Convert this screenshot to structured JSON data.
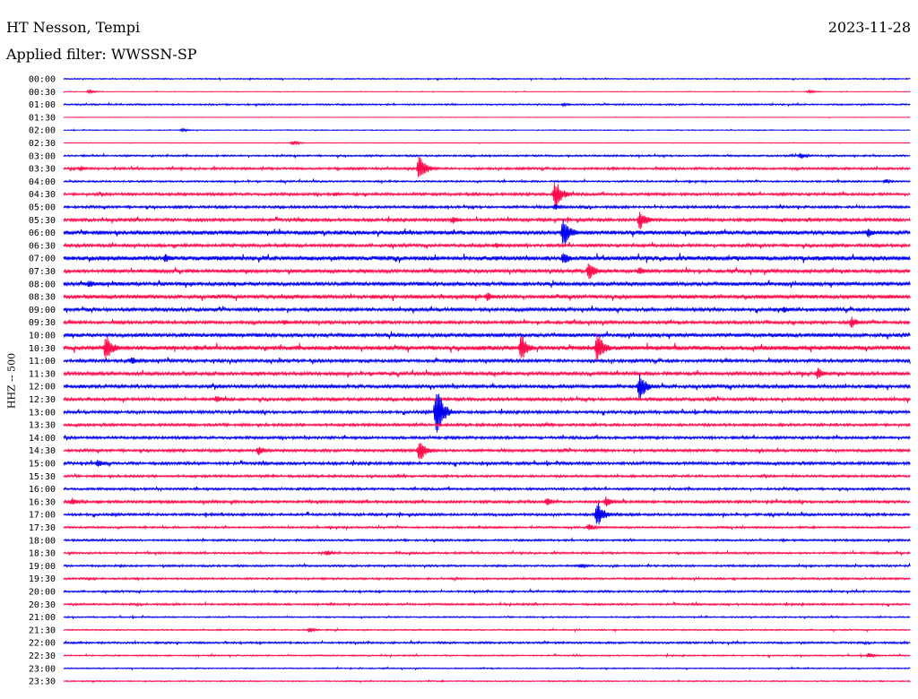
{
  "header": {
    "station": "HT Nesson, Tempi",
    "date": "2023-11-28",
    "filter": "Applied filter: WWSSN-SP"
  },
  "chart_data": {
    "type": "line",
    "title": "HT Nesson, Tempi",
    "subtitle": "Applied filter: WWSSN-SP",
    "ylabel": "HHZ -- 500",
    "xlabel": "",
    "grid": false,
    "y_tick_labels": [
      "00:00",
      "00:30",
      "01:00",
      "01:30",
      "02:00",
      "02:30",
      "03:00",
      "03:30",
      "04:00",
      "04:30",
      "05:00",
      "05:30",
      "06:00",
      "06:30",
      "07:00",
      "07:30",
      "08:00",
      "08:30",
      "09:00",
      "09:30",
      "10:00",
      "10:30",
      "11:00",
      "11:30",
      "12:00",
      "12:30",
      "13:00",
      "13:30",
      "14:00",
      "14:30",
      "15:00",
      "15:30",
      "16:00",
      "16:30",
      "17:00",
      "17:30",
      "18:00",
      "18:30",
      "19:00",
      "19:30",
      "20:00",
      "20:30",
      "21:00",
      "21:30",
      "22:00",
      "22:30",
      "23:00",
      "23:30"
    ],
    "trace_colors": [
      "#0000ee",
      "#ff0a4a"
    ],
    "noise_levels": [
      0.6,
      0.3,
      0.8,
      0.2,
      0.4,
      0.3,
      0.9,
      1.2,
      0.9,
      1.4,
      1.3,
      1.6,
      2.2,
      1.6,
      2.4,
      1.8,
      2.0,
      2.0,
      1.8,
      1.6,
      2.0,
      2.4,
      1.6,
      1.8,
      1.8,
      1.6,
      1.5,
      1.4,
      1.4,
      1.4,
      1.5,
      1.2,
      1.2,
      1.4,
      1.3,
      1.0,
      1.0,
      1.0,
      1.0,
      1.0,
      1.0,
      1.0,
      0.7,
      0.7,
      1.0,
      0.7,
      0.6,
      0.6
    ],
    "events": [
      {
        "trace": 1,
        "pos": 0.03,
        "amp": 2
      },
      {
        "trace": 1,
        "pos": 0.88,
        "amp": 2
      },
      {
        "trace": 2,
        "pos": 0.59,
        "amp": 2
      },
      {
        "trace": 4,
        "pos": 0.14,
        "amp": 2
      },
      {
        "trace": 5,
        "pos": 0.27,
        "amp": 3
      },
      {
        "trace": 6,
        "pos": 0.87,
        "amp": 4
      },
      {
        "trace": 7,
        "pos": 0.42,
        "amp": 16
      },
      {
        "trace": 7,
        "pos": 0.02,
        "amp": 3
      },
      {
        "trace": 8,
        "pos": 0.97,
        "amp": 3
      },
      {
        "trace": 9,
        "pos": 0.58,
        "amp": 18
      },
      {
        "trace": 9,
        "pos": 0.32,
        "amp": 3
      },
      {
        "trace": 10,
        "pos": 0.58,
        "amp": 4
      },
      {
        "trace": 11,
        "pos": 0.68,
        "amp": 12
      },
      {
        "trace": 11,
        "pos": 0.46,
        "amp": 5
      },
      {
        "trace": 12,
        "pos": 0.59,
        "amp": 18
      },
      {
        "trace": 12,
        "pos": 0.95,
        "amp": 6
      },
      {
        "trace": 13,
        "pos": 0.51,
        "amp": 4
      },
      {
        "trace": 14,
        "pos": 0.12,
        "amp": 6
      },
      {
        "trace": 14,
        "pos": 0.59,
        "amp": 8
      },
      {
        "trace": 15,
        "pos": 0.62,
        "amp": 12
      },
      {
        "trace": 15,
        "pos": 0.68,
        "amp": 6
      },
      {
        "trace": 16,
        "pos": 0.03,
        "amp": 5
      },
      {
        "trace": 17,
        "pos": 0.5,
        "amp": 6
      },
      {
        "trace": 18,
        "pos": 0.85,
        "amp": 5
      },
      {
        "trace": 19,
        "pos": 0.93,
        "amp": 7
      },
      {
        "trace": 19,
        "pos": 0.26,
        "amp": 4
      },
      {
        "trace": 21,
        "pos": 0.05,
        "amp": 16
      },
      {
        "trace": 21,
        "pos": 0.54,
        "amp": 16
      },
      {
        "trace": 21,
        "pos": 0.63,
        "amp": 18
      },
      {
        "trace": 22,
        "pos": 0.08,
        "amp": 5
      },
      {
        "trace": 23,
        "pos": 0.89,
        "amp": 7
      },
      {
        "trace": 24,
        "pos": 0.68,
        "amp": 16
      },
      {
        "trace": 25,
        "pos": 0.18,
        "amp": 5
      },
      {
        "trace": 26,
        "pos": 0.44,
        "amp": 30
      },
      {
        "trace": 29,
        "pos": 0.42,
        "amp": 14
      },
      {
        "trace": 29,
        "pos": 0.23,
        "amp": 6
      },
      {
        "trace": 30,
        "pos": 0.04,
        "amp": 5
      },
      {
        "trace": 33,
        "pos": 0.01,
        "amp": 5
      },
      {
        "trace": 33,
        "pos": 0.57,
        "amp": 5
      },
      {
        "trace": 33,
        "pos": 0.64,
        "amp": 6
      },
      {
        "trace": 34,
        "pos": 0.63,
        "amp": 15
      },
      {
        "trace": 35,
        "pos": 0.62,
        "amp": 4
      },
      {
        "trace": 37,
        "pos": 0.31,
        "amp": 4
      },
      {
        "trace": 38,
        "pos": 0.61,
        "amp": 3
      },
      {
        "trace": 43,
        "pos": 0.29,
        "amp": 3
      },
      {
        "trace": 45,
        "pos": 0.95,
        "amp": 3
      }
    ]
  }
}
